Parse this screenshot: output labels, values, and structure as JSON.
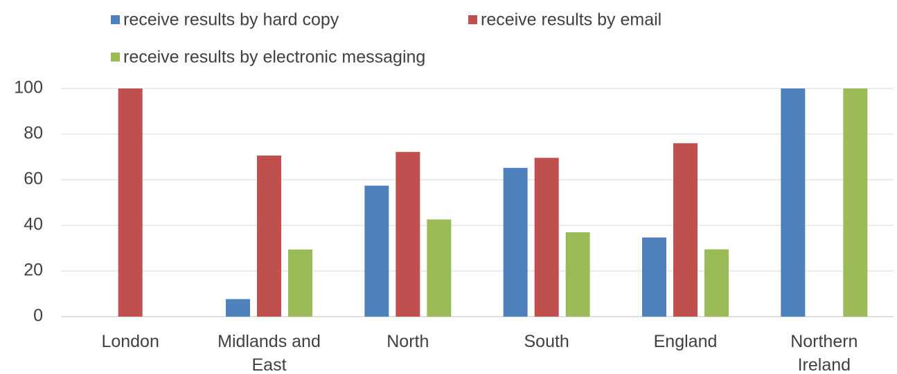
{
  "chart_data": {
    "type": "bar",
    "categories": [
      [
        "London"
      ],
      [
        "Midlands and",
        "East"
      ],
      [
        "North"
      ],
      [
        "South"
      ],
      [
        "England"
      ],
      [
        "Northern",
        "Ireland"
      ]
    ],
    "series": [
      {
        "name": "receive results by hard copy",
        "color": "#4F81BD",
        "values": [
          0,
          7.7,
          57.4,
          65.2,
          34.7,
          100
        ]
      },
      {
        "name": "receive results by email",
        "color": "#C0504D",
        "values": [
          100,
          70.6,
          72.2,
          69.6,
          76.0,
          0
        ]
      },
      {
        "name": "receive results by electronic messaging",
        "color": "#9BBB59",
        "values": [
          0,
          29.4,
          42.6,
          37.0,
          29.5,
          100
        ]
      }
    ],
    "yticks": [
      0,
      20,
      40,
      60,
      80,
      100
    ],
    "ylim": [
      0,
      100
    ],
    "grid": true,
    "legend": "top"
  }
}
